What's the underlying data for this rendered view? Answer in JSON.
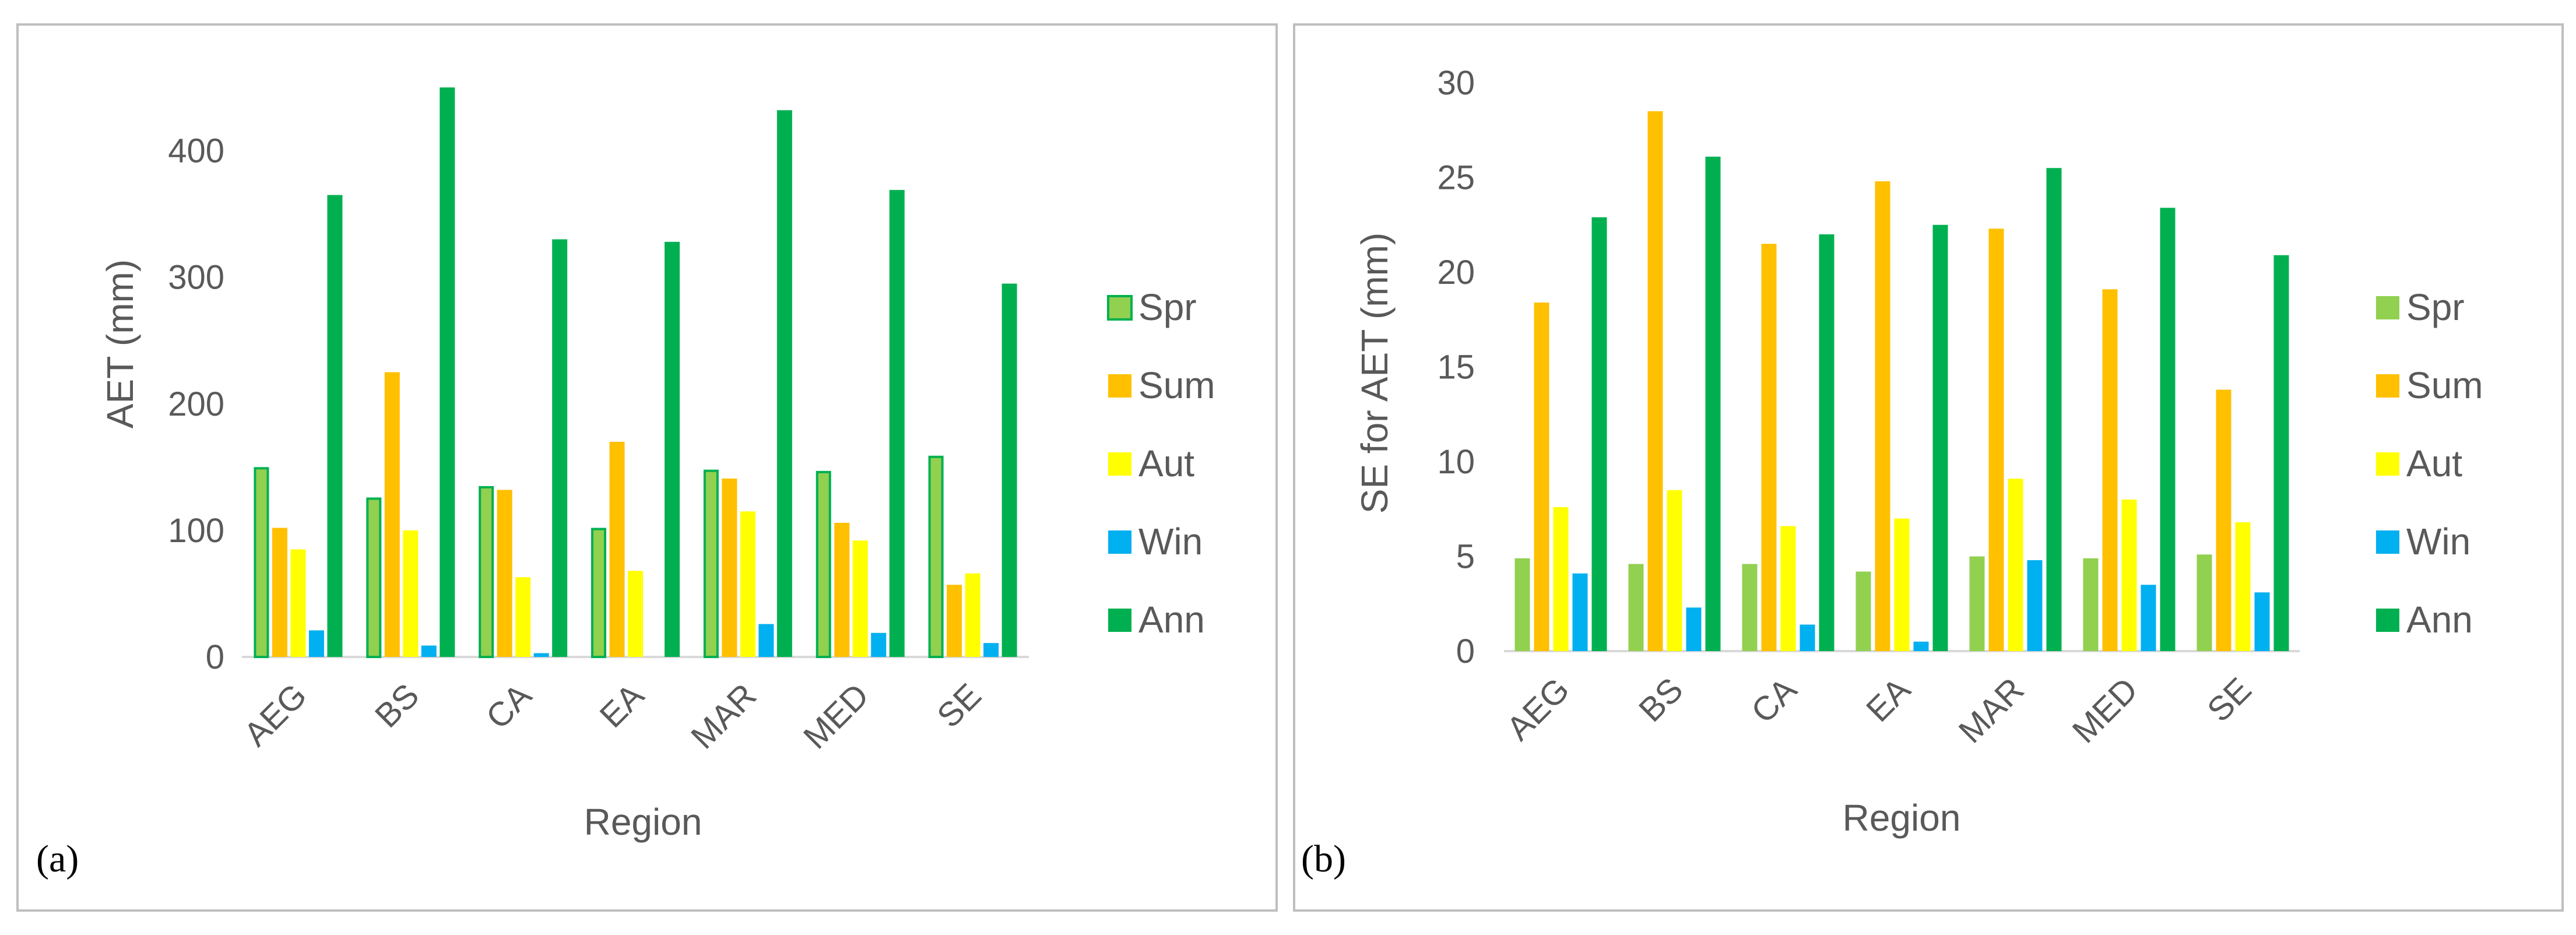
{
  "chart_data": [
    {
      "type": "bar",
      "panel_label": "(a)",
      "title": "",
      "xlabel": "Region",
      "ylabel": "AET (mm)",
      "ylim": [
        0,
        450
      ],
      "yticks": [
        "0",
        "100",
        "200",
        "300",
        "400"
      ],
      "grid": false,
      "legend_position": "right",
      "categories": [
        "AEG",
        "BS",
        "CA",
        "EA",
        "MAR",
        "MED",
        "SE"
      ],
      "series": [
        {
          "name": "Spr",
          "color": "#92D050",
          "stroke": "#00B050",
          "values": [
            150,
            126,
            135,
            102,
            148,
            147,
            159
          ]
        },
        {
          "name": "Sum",
          "color": "#FFC000",
          "values": [
            102,
            225,
            132,
            170,
            141,
            106,
            57
          ]
        },
        {
          "name": "Aut",
          "color": "#FFFF00",
          "values": [
            85,
            100,
            63,
            68,
            115,
            92,
            66
          ]
        },
        {
          "name": "Win",
          "color": "#00B0F0",
          "values": [
            21,
            9,
            3,
            0,
            26,
            19,
            11
          ]
        },
        {
          "name": "Ann",
          "color": "#00B050",
          "values": [
            365,
            450,
            330,
            328,
            432,
            369,
            295
          ]
        }
      ]
    },
    {
      "type": "bar",
      "panel_label": "(b)",
      "title": "",
      "xlabel": "Region",
      "ylabel": "SE for AET (mm)",
      "ylim": [
        0,
        30
      ],
      "yticks": [
        "0",
        "5",
        "10",
        "15",
        "20",
        "25",
        "30"
      ],
      "grid": false,
      "legend_position": "right",
      "categories": [
        "AEG",
        "BS",
        "CA",
        "EA",
        "MAR",
        "MED",
        "SE"
      ],
      "series": [
        {
          "name": "Spr",
          "color": "#92D050",
          "values": [
            4.9,
            4.6,
            4.6,
            4.2,
            5.0,
            4.9,
            5.1
          ]
        },
        {
          "name": "Sum",
          "color": "#FFC000",
          "values": [
            18.4,
            28.5,
            21.5,
            24.8,
            22.3,
            19.1,
            13.8
          ]
        },
        {
          "name": "Aut",
          "color": "#FFFF00",
          "values": [
            7.6,
            8.5,
            6.6,
            7.0,
            9.1,
            8.0,
            6.8
          ]
        },
        {
          "name": "Win",
          "color": "#00B0F0",
          "values": [
            4.1,
            2.3,
            1.4,
            0.5,
            4.8,
            3.5,
            3.1
          ]
        },
        {
          "name": "Ann",
          "color": "#00B050",
          "values": [
            22.9,
            26.1,
            22.0,
            22.5,
            25.5,
            23.4,
            20.9
          ]
        }
      ]
    }
  ]
}
